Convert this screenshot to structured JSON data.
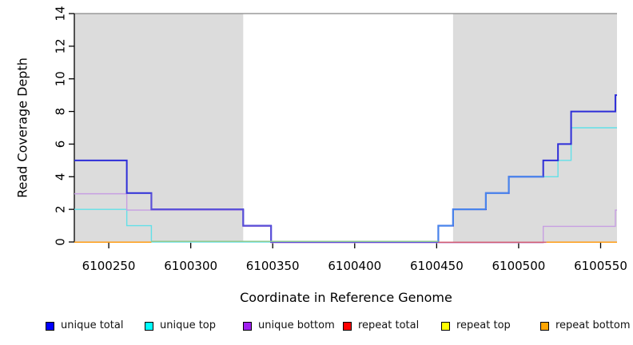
{
  "chart_data": {
    "type": "line",
    "subtype": "step-coverage",
    "title": "",
    "xlabel": "Coordinate in Reference Genome",
    "ylabel": "Read Coverage Depth",
    "xlim": [
      6100229,
      6100560
    ],
    "ylim": [
      0,
      14
    ],
    "x_ticks": [
      6100250,
      6100300,
      6100350,
      6100400,
      6100450,
      6100500,
      6100550
    ],
    "y_ticks": [
      0,
      2,
      4,
      6,
      8,
      10,
      12,
      14
    ],
    "grid": false,
    "legend_position": "bottom",
    "repeat_regions": [
      [
        6100229,
        6100332
      ],
      [
        6100460,
        6100560
      ]
    ],
    "series": [
      {
        "name": "unique total",
        "legend_color": "#0000FF",
        "line_color": "#2e2ed8",
        "line_color_over_top": "#4886ec",
        "line_color_over_bottom": "#5b50d8",
        "segments": [
          [
            6100229,
            6100261,
            5
          ],
          [
            6100261,
            6100276,
            3
          ],
          [
            6100276,
            6100332,
            2
          ],
          [
            6100332,
            6100349,
            1
          ],
          [
            6100349,
            6100451,
            0
          ],
          [
            6100451,
            6100460,
            1
          ],
          [
            6100460,
            6100480,
            2
          ],
          [
            6100480,
            6100494,
            3
          ],
          [
            6100494,
            6100515,
            4
          ],
          [
            6100515,
            6100524,
            5
          ],
          [
            6100524,
            6100532,
            6
          ],
          [
            6100532,
            6100559,
            8
          ],
          [
            6100559,
            6100560,
            9
          ]
        ]
      },
      {
        "name": "unique top",
        "legend_color": "#00FFFF",
        "line_color": "#62e0e8",
        "segments": [
          [
            6100229,
            6100261,
            2
          ],
          [
            6100261,
            6100276,
            1
          ],
          [
            6100276,
            6100451,
            0
          ],
          [
            6100451,
            6100460,
            1
          ],
          [
            6100460,
            6100480,
            2
          ],
          [
            6100480,
            6100494,
            3
          ],
          [
            6100494,
            6100524,
            4
          ],
          [
            6100524,
            6100532,
            5
          ],
          [
            6100532,
            6100560,
            7
          ]
        ]
      },
      {
        "name": "unique bottom",
        "legend_color": "#A020F0",
        "line_color": "#c79fe2",
        "segments": [
          [
            6100229,
            6100261,
            3
          ],
          [
            6100261,
            6100332,
            2
          ],
          [
            6100332,
            6100349,
            1
          ],
          [
            6100349,
            6100515,
            0
          ],
          [
            6100515,
            6100559,
            1
          ],
          [
            6100559,
            6100560,
            2
          ]
        ]
      },
      {
        "name": "repeat total",
        "legend_color": "#FF0000",
        "line_color": "#d25c70",
        "segments": [
          [
            6100229,
            6100560,
            0
          ]
        ]
      },
      {
        "name": "repeat top",
        "legend_color": "#FFFF00",
        "line_color": "#ffff00",
        "segments": [
          [
            6100229,
            6100560,
            0
          ]
        ]
      },
      {
        "name": "repeat bottom",
        "legend_color": "#FFA500",
        "line_color": "#ff9d14",
        "segments": [
          [
            6100229,
            6100560,
            0
          ]
        ]
      }
    ],
    "baseline_visible_segments": [
      {
        "from": 6100229,
        "to": 6100276,
        "color": "#ff9d14",
        "dy": 0.3
      },
      {
        "from": 6100276,
        "to": 6100451,
        "color": "#8fca8f",
        "dy": -0.7
      },
      {
        "from": 6100451,
        "to": 6100517,
        "color": "#d25c70",
        "dy": 0.4
      },
      {
        "from": 6100517,
        "to": 6100560,
        "color": "#ff9d14",
        "dy": 0.3
      }
    ],
    "colors": {
      "repeat_shade": "#dcdcdc",
      "top_boundary_line": "#9a9a9a",
      "axis": "#000000"
    }
  }
}
